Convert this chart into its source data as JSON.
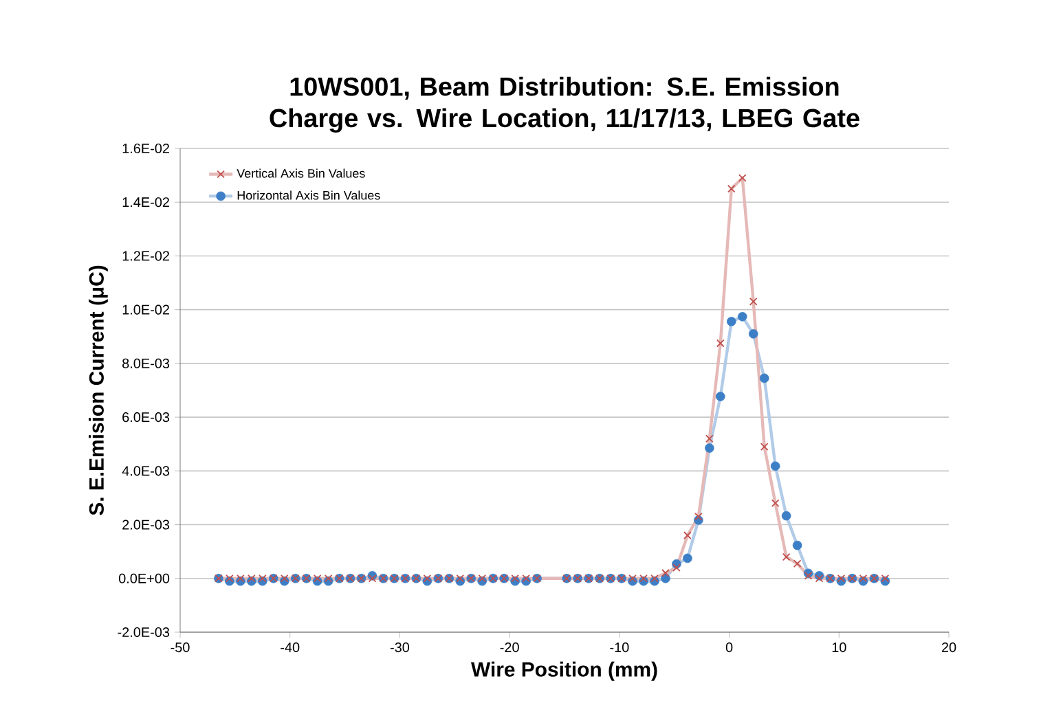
{
  "chart_data": {
    "type": "line",
    "title": "10WS001, Beam Distribution:  S.E. Emission Charge vs. Wire Location, 11/17/13, LBEG Gate",
    "xlabel": "Wire Position (mm)",
    "ylabel": "S. E.Emision  Current (μC)",
    "x": [
      -46.5,
      -45.5,
      -44.5,
      -43.5,
      -42.5,
      -41.5,
      -40.5,
      -39.5,
      -38.5,
      -37.5,
      -36.5,
      -35.5,
      -34.5,
      -33.5,
      -32.5,
      -31.5,
      -30.5,
      -29.5,
      -28.5,
      -27.5,
      -26.5,
      -25.5,
      -24.5,
      -23.5,
      -22.5,
      -21.5,
      -20.5,
      -19.5,
      -18.5,
      -17.5,
      -14.8,
      -13.8,
      -12.8,
      -11.8,
      -10.8,
      -9.8,
      -8.8,
      -7.8,
      -6.8,
      -5.8,
      -4.8,
      -3.8,
      -2.8,
      -1.8,
      -0.8,
      0.2,
      1.2,
      2.2,
      3.2,
      4.2,
      5.2,
      6.2,
      7.2,
      8.2,
      9.2,
      10.2,
      11.2,
      12.2,
      13.2,
      14.2
    ],
    "series": [
      {
        "name": "Vertical Axis Bin Values",
        "color": "#c0504d",
        "marker": "cross",
        "values": [
          0,
          0,
          0,
          0,
          0,
          0,
          0,
          0,
          0,
          0,
          0,
          0,
          0,
          0,
          0,
          0,
          0,
          0,
          0,
          0,
          0,
          0,
          0,
          0,
          0,
          0,
          0,
          0,
          0,
          0,
          0,
          0,
          0,
          0,
          0,
          0,
          0,
          0,
          0,
          0.0002,
          0.0004,
          0.0016,
          0.0023,
          0.0052,
          0.00875,
          0.0145,
          0.0149,
          0.0103,
          0.0049,
          0.0028,
          0.0008,
          0.00055,
          0.0001,
          0,
          0,
          0,
          0,
          0,
          0,
          0
        ]
      },
      {
        "name": "Horizontal Axis Bin Values",
        "color": "#3d7fc6",
        "marker": "circle",
        "values": [
          0,
          -0.0001,
          -0.0001,
          -0.0001,
          -0.0001,
          0,
          -0.0001,
          0,
          0,
          -0.0001,
          -0.0001,
          0,
          0,
          0,
          0.0001,
          0,
          0,
          0,
          0,
          -0.0001,
          0,
          0,
          -0.0001,
          0,
          -0.0001,
          0,
          0,
          -0.0001,
          -0.0001,
          0,
          0,
          0,
          0,
          0,
          0,
          0,
          -0.0001,
          -0.0001,
          -0.0001,
          0,
          0.00054,
          0.00075,
          0.00217,
          0.00485,
          0.00677,
          0.00956,
          0.00974,
          0.0091,
          0.00745,
          0.00418,
          0.00233,
          0.00123,
          0.00019,
          0.0001,
          0,
          -0.0001,
          0,
          -0.0001,
          0,
          -0.0001
        ]
      }
    ],
    "xlim": [
      -50,
      20
    ],
    "xticks": [
      -50,
      -40,
      -30,
      -20,
      -10,
      0,
      10,
      20
    ],
    "ylim": [
      -0.002,
      0.016
    ],
    "yticks": [
      {
        "value": -0.002,
        "label": "-2.0E-03"
      },
      {
        "value": 0,
        "label": "0.0E+00"
      },
      {
        "value": 0.002,
        "label": "2.0E-03"
      },
      {
        "value": 0.004,
        "label": "4.0E-03"
      },
      {
        "value": 0.006,
        "label": "6.0E-03"
      },
      {
        "value": 0.008,
        "label": "8.0E-03"
      },
      {
        "value": 0.01,
        "label": "1.0E-02"
      },
      {
        "value": 0.012,
        "label": "1.2E-02"
      },
      {
        "value": 0.014,
        "label": "1.4E-02"
      },
      {
        "value": 0.016,
        "label": "1.6E-02"
      }
    ],
    "grid": "y",
    "legend": "top left"
  }
}
